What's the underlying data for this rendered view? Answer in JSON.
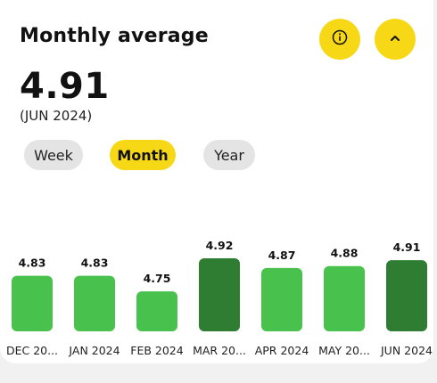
{
  "header": {
    "title": "Monthly average",
    "info_icon": "info-icon",
    "collapse_icon": "chevron-up-icon"
  },
  "summary": {
    "value": "4.91",
    "period": "(JUN 2024)"
  },
  "range_tabs": {
    "week": "Week",
    "month": "Month",
    "year": "Year",
    "selected": "Month"
  },
  "colors": {
    "accent_yellow": "#f7d816",
    "bar_light_green": "#48c24d",
    "bar_dark_green": "#2e7d32",
    "chip_gray": "#e4e4e4"
  },
  "chart_data": {
    "type": "bar",
    "categories": [
      "DEC 20...",
      "JAN 2024",
      "FEB 2024",
      "MAR 20...",
      "APR 2024",
      "MAY 20...",
      "JUN 2024"
    ],
    "values": [
      4.83,
      4.83,
      4.75,
      4.92,
      4.87,
      4.88,
      4.91
    ],
    "value_labels": [
      "4.83",
      "4.83",
      "4.75",
      "4.92",
      "4.87",
      "4.88",
      "4.91"
    ],
    "highlighted": [
      false,
      false,
      false,
      true,
      false,
      false,
      true
    ],
    "title": "",
    "xlabel": "",
    "ylabel": ""
  }
}
